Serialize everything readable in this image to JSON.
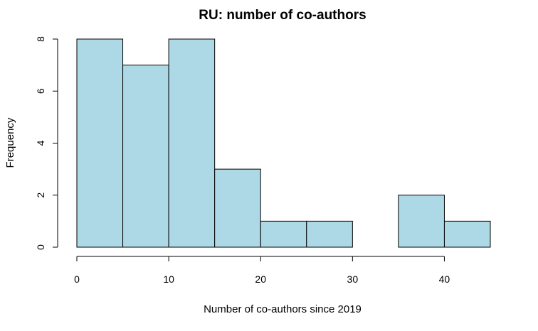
{
  "chart_data": {
    "type": "bar",
    "title": "RU: number of co-authors",
    "xlabel": "Number of co-authors since 2019",
    "ylabel": "Frequency",
    "bins": [
      {
        "start": 0,
        "end": 5,
        "count": 8
      },
      {
        "start": 5,
        "end": 10,
        "count": 7
      },
      {
        "start": 10,
        "end": 15,
        "count": 8
      },
      {
        "start": 15,
        "end": 20,
        "count": 3
      },
      {
        "start": 20,
        "end": 25,
        "count": 1
      },
      {
        "start": 25,
        "end": 30,
        "count": 1
      },
      {
        "start": 30,
        "end": 35,
        "count": 0
      },
      {
        "start": 35,
        "end": 40,
        "count": 2
      },
      {
        "start": 40,
        "end": 45,
        "count": 1
      }
    ],
    "xlim": [
      0,
      45
    ],
    "ylim": [
      0,
      8
    ],
    "xticks": [
      0,
      10,
      20,
      30,
      40
    ],
    "yticks": [
      0,
      2,
      4,
      6,
      8
    ],
    "bar_color": "#add8e6",
    "grid": false
  }
}
